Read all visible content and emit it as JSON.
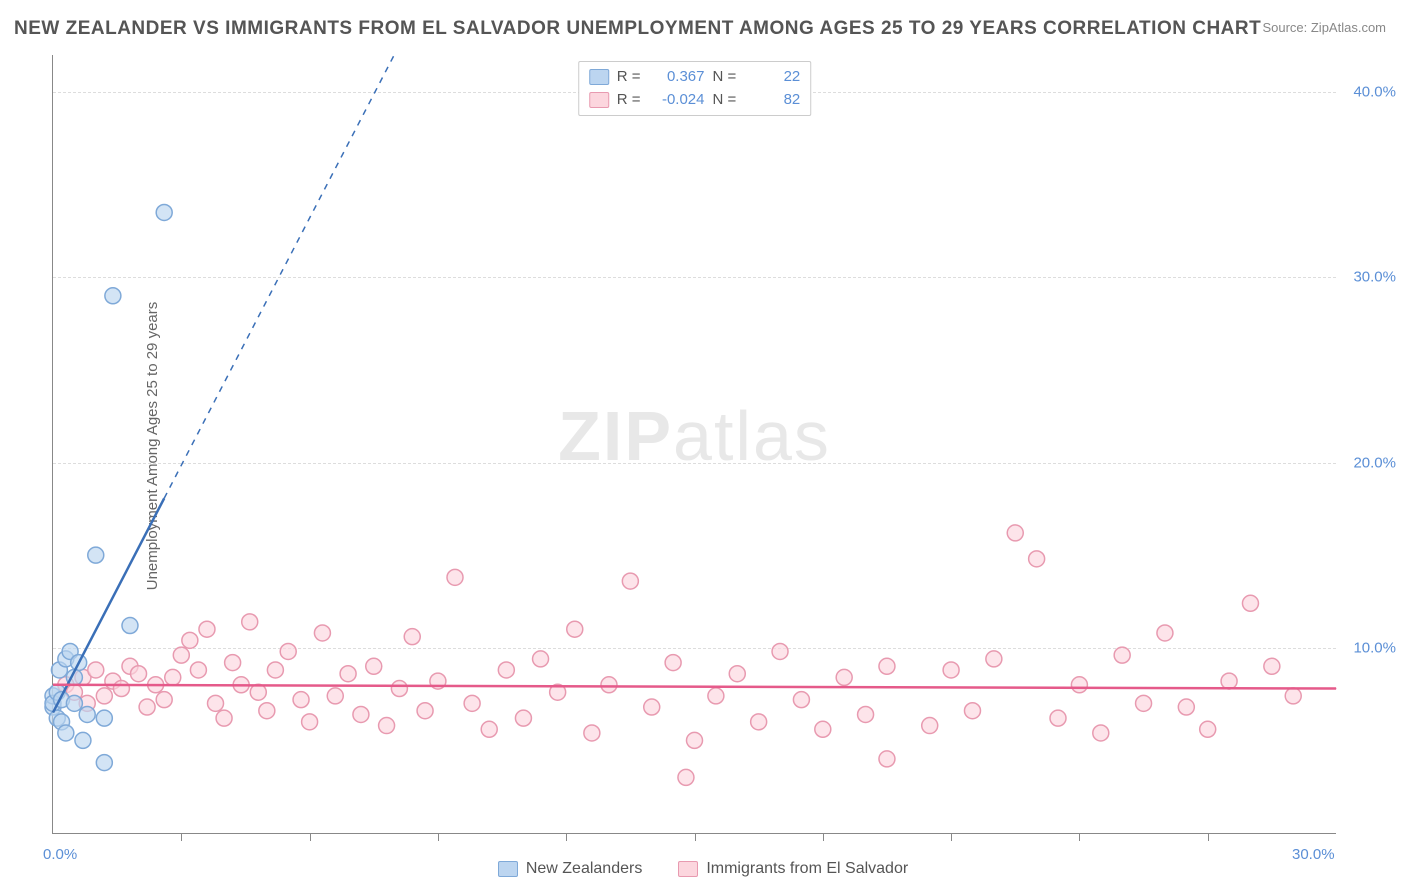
{
  "title": "NEW ZEALANDER VS IMMIGRANTS FROM EL SALVADOR UNEMPLOYMENT AMONG AGES 25 TO 29 YEARS CORRELATION CHART",
  "source": "Source: ZipAtlas.com",
  "ylabel": "Unemployment Among Ages 25 to 29 years",
  "watermark_a": "ZIP",
  "watermark_b": "atlas",
  "chart": {
    "type": "scatter",
    "xlim": [
      0,
      30
    ],
    "ylim": [
      0,
      42
    ],
    "x_tick_interval_minor": 3.0,
    "x_ticks_labeled": [
      {
        "value": 0,
        "label": "0.0%"
      },
      {
        "value": 30,
        "label": "30.0%"
      }
    ],
    "y_ticks": [
      {
        "value": 10,
        "label": "10.0%"
      },
      {
        "value": 20,
        "label": "20.0%"
      },
      {
        "value": 30,
        "label": "30.0%"
      },
      {
        "value": 40,
        "label": "40.0%"
      }
    ],
    "grid_color": "#dddddd",
    "background_color": "#ffffff",
    "marker_radius": 8,
    "marker_stroke_width": 1.5,
    "trend_solid_width": 2.5,
    "trend_dash_pattern": "6,6",
    "series": [
      {
        "id": "new_zealanders",
        "label": "New Zealanders",
        "color_fill": "#bcd5f0",
        "color_stroke": "#7fa9d8",
        "r_value": "0.367",
        "n_value": "22",
        "trend": {
          "x1": 0,
          "y1": 6.5,
          "x2": 30,
          "y2": 140,
          "solid_xmax": 2.6,
          "color": "#3a6fb7"
        },
        "points": [
          [
            0.0,
            6.8
          ],
          [
            0.0,
            7.4
          ],
          [
            0.0,
            7.0
          ],
          [
            0.1,
            6.2
          ],
          [
            0.1,
            7.6
          ],
          [
            0.15,
            8.8
          ],
          [
            0.2,
            6.0
          ],
          [
            0.2,
            7.2
          ],
          [
            0.3,
            5.4
          ],
          [
            0.3,
            9.4
          ],
          [
            0.4,
            9.8
          ],
          [
            0.5,
            7.0
          ],
          [
            0.6,
            9.2
          ],
          [
            0.7,
            5.0
          ],
          [
            0.8,
            6.4
          ],
          [
            1.0,
            15.0
          ],
          [
            1.2,
            3.8
          ],
          [
            1.2,
            6.2
          ],
          [
            1.4,
            29.0
          ],
          [
            1.8,
            11.2
          ],
          [
            2.6,
            33.5
          ],
          [
            0.5,
            8.4
          ]
        ]
      },
      {
        "id": "el_salvador",
        "label": "Immigrants from El Salvador",
        "color_fill": "#fcd6de",
        "color_stroke": "#e89ab0",
        "r_value": "-0.024",
        "n_value": "82",
        "trend": {
          "x1": 0,
          "y1": 8.0,
          "x2": 30,
          "y2": 7.8,
          "solid_xmax": 30,
          "color": "#e55a8a"
        },
        "points": [
          [
            0.3,
            8.0
          ],
          [
            0.5,
            7.6
          ],
          [
            0.7,
            8.4
          ],
          [
            0.8,
            7.0
          ],
          [
            1.0,
            8.8
          ],
          [
            1.2,
            7.4
          ],
          [
            1.4,
            8.2
          ],
          [
            1.6,
            7.8
          ],
          [
            1.8,
            9.0
          ],
          [
            2.0,
            8.6
          ],
          [
            2.2,
            6.8
          ],
          [
            2.4,
            8.0
          ],
          [
            2.6,
            7.2
          ],
          [
            2.8,
            8.4
          ],
          [
            3.0,
            9.6
          ],
          [
            3.2,
            10.4
          ],
          [
            3.4,
            8.8
          ],
          [
            3.6,
            11.0
          ],
          [
            3.8,
            7.0
          ],
          [
            4.0,
            6.2
          ],
          [
            4.2,
            9.2
          ],
          [
            4.4,
            8.0
          ],
          [
            4.6,
            11.4
          ],
          [
            4.8,
            7.6
          ],
          [
            5.0,
            6.6
          ],
          [
            5.2,
            8.8
          ],
          [
            5.5,
            9.8
          ],
          [
            5.8,
            7.2
          ],
          [
            6.0,
            6.0
          ],
          [
            6.3,
            10.8
          ],
          [
            6.6,
            7.4
          ],
          [
            6.9,
            8.6
          ],
          [
            7.2,
            6.4
          ],
          [
            7.5,
            9.0
          ],
          [
            7.8,
            5.8
          ],
          [
            8.1,
            7.8
          ],
          [
            8.4,
            10.6
          ],
          [
            8.7,
            6.6
          ],
          [
            9.0,
            8.2
          ],
          [
            9.4,
            13.8
          ],
          [
            9.8,
            7.0
          ],
          [
            10.2,
            5.6
          ],
          [
            10.6,
            8.8
          ],
          [
            11.0,
            6.2
          ],
          [
            11.4,
            9.4
          ],
          [
            11.8,
            7.6
          ],
          [
            12.2,
            11.0
          ],
          [
            12.6,
            5.4
          ],
          [
            13.0,
            8.0
          ],
          [
            13.5,
            13.6
          ],
          [
            14.0,
            6.8
          ],
          [
            14.5,
            9.2
          ],
          [
            15.0,
            5.0
          ],
          [
            15.5,
            7.4
          ],
          [
            16.0,
            8.6
          ],
          [
            16.5,
            6.0
          ],
          [
            17.0,
            9.8
          ],
          [
            17.5,
            7.2
          ],
          [
            18.0,
            5.6
          ],
          [
            18.5,
            8.4
          ],
          [
            19.0,
            6.4
          ],
          [
            19.5,
            9.0
          ],
          [
            14.8,
            3.0
          ],
          [
            20.5,
            5.8
          ],
          [
            21.0,
            8.8
          ],
          [
            21.5,
            6.6
          ],
          [
            22.0,
            9.4
          ],
          [
            22.5,
            16.2
          ],
          [
            23.0,
            14.8
          ],
          [
            23.5,
            6.2
          ],
          [
            24.0,
            8.0
          ],
          [
            24.5,
            5.4
          ],
          [
            25.0,
            9.6
          ],
          [
            25.5,
            7.0
          ],
          [
            26.0,
            10.8
          ],
          [
            26.5,
            6.8
          ],
          [
            19.5,
            4.0
          ],
          [
            27.5,
            8.2
          ],
          [
            28.0,
            12.4
          ],
          [
            28.5,
            9.0
          ],
          [
            29.0,
            7.4
          ],
          [
            27.0,
            5.6
          ]
        ]
      }
    ],
    "legend_top_labels": {
      "r_prefix": "R =",
      "n_prefix": "N ="
    }
  }
}
